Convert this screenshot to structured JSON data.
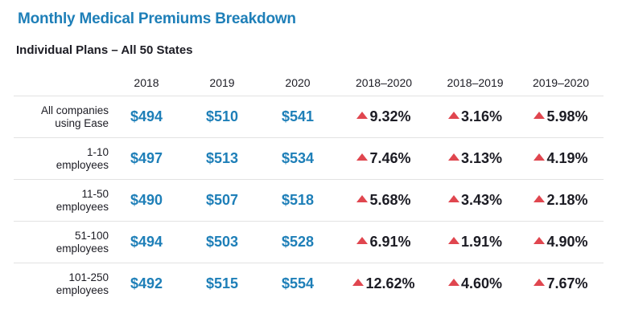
{
  "title": "Monthly Medical Premiums Breakdown",
  "subtitle": "Individual Plans – All 50 States",
  "chart_data": {
    "type": "table",
    "title": "Monthly Medical Premiums Breakdown",
    "subtitle": "Individual Plans – All 50 States",
    "columns": [
      "2018",
      "2019",
      "2020",
      "2018–2020",
      "2018–2019",
      "2019–2020"
    ],
    "rows": [
      {
        "label_lines": [
          "All companies",
          "using Ease"
        ],
        "prices": [
          "$494",
          "$510",
          "$541"
        ],
        "changes": [
          "9.32%",
          "3.16%",
          "5.98%"
        ]
      },
      {
        "label_lines": [
          "1-10",
          "employees"
        ],
        "prices": [
          "$497",
          "$513",
          "$534"
        ],
        "changes": [
          "7.46%",
          "3.13%",
          "4.19%"
        ]
      },
      {
        "label_lines": [
          "11-50",
          "employees"
        ],
        "prices": [
          "$490",
          "$507",
          "$518"
        ],
        "changes": [
          "5.68%",
          "3.43%",
          "2.18%"
        ]
      },
      {
        "label_lines": [
          "51-100",
          "employees"
        ],
        "prices": [
          "$494",
          "$503",
          "$528"
        ],
        "changes": [
          "6.91%",
          "1.91%",
          "4.90%"
        ]
      },
      {
        "label_lines": [
          "101-250",
          "employees"
        ],
        "prices": [
          "$492",
          "$515",
          "$554"
        ],
        "changes": [
          "12.62%",
          "4.60%",
          "7.67%"
        ]
      }
    ],
    "change_direction": "increase",
    "colors": {
      "title": "#1e7fb8",
      "price": "#1e7fb8",
      "increase_arrow": "#e0464f",
      "row_divider": "#e2e2e2"
    }
  }
}
